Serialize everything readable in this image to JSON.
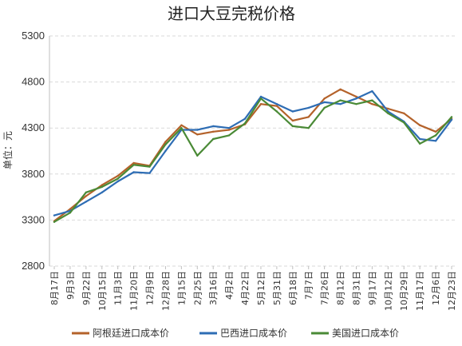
{
  "chart_data": {
    "type": "line",
    "title": "进口大豆完税价格",
    "ylabel": "单位：元",
    "xlabel": "",
    "ylim": [
      2800,
      5300
    ],
    "yticks": [
      2800,
      3300,
      3800,
      4300,
      4800,
      5300
    ],
    "grid": "horizontal-dashed",
    "legend_position": "bottom",
    "categories": [
      "8月17日",
      "9月3日",
      "9月22日",
      "10月15日",
      "11月3日",
      "11月20日",
      "12月9日",
      "12月28日",
      "1月15日",
      "2月25日",
      "3月16日",
      "4月2日",
      "4月22日",
      "5月12日",
      "5月31日",
      "6月18日",
      "7月7日",
      "7月26日",
      "8月12日",
      "8月31日",
      "9月17日",
      "10月12日",
      "10月29日",
      "11月17日",
      "12月6日",
      "12月23日"
    ],
    "series": [
      {
        "name": "阿根廷进口成本价",
        "color": "#b4622a",
        "values": [
          3290,
          3420,
          3560,
          3680,
          3780,
          3920,
          3890,
          4150,
          4330,
          4230,
          4260,
          4280,
          4340,
          4560,
          4540,
          4380,
          4420,
          4620,
          4720,
          4640,
          4560,
          4510,
          4460,
          4330,
          4260,
          4400
        ]
      },
      {
        "name": "巴西进口成本价",
        "color": "#2e6db4",
        "values": [
          3350,
          3400,
          3500,
          3600,
          3720,
          3820,
          3810,
          4050,
          4280,
          4280,
          4320,
          4300,
          4400,
          4640,
          4560,
          4480,
          4520,
          4580,
          4560,
          4620,
          4700,
          4480,
          4370,
          4180,
          4160,
          4390
        ]
      },
      {
        "name": "美国进口成本价",
        "color": "#4a8a36",
        "values": [
          3280,
          3380,
          3600,
          3660,
          3750,
          3900,
          3880,
          4120,
          4300,
          4000,
          4180,
          4220,
          4350,
          4620,
          4480,
          4320,
          4300,
          4520,
          4600,
          4560,
          4600,
          4460,
          4360,
          4130,
          4220,
          4420
        ]
      }
    ]
  }
}
